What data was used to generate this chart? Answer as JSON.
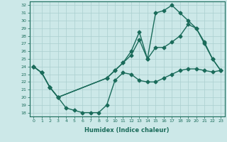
{
  "xlabel": "Humidex (Indice chaleur)",
  "xlim": [
    -0.5,
    23.5
  ],
  "ylim": [
    17.5,
    32.5
  ],
  "xticks": [
    0,
    1,
    2,
    3,
    4,
    5,
    6,
    7,
    8,
    9,
    10,
    11,
    12,
    13,
    14,
    15,
    16,
    17,
    18,
    19,
    20,
    21,
    22,
    23
  ],
  "yticks": [
    18,
    19,
    20,
    21,
    22,
    23,
    24,
    25,
    26,
    27,
    28,
    29,
    30,
    31,
    32
  ],
  "line_color": "#1a6b5a",
  "bg_color": "#cce8e8",
  "grid_color": "#aacfcf",
  "line1_x": [
    0,
    1,
    2,
    3,
    4,
    5,
    6,
    7,
    8,
    9,
    10,
    11,
    12,
    13,
    14,
    15,
    16,
    17,
    18,
    19,
    20,
    21,
    22,
    23
  ],
  "line1_y": [
    24.0,
    23.2,
    21.3,
    20.0,
    18.6,
    18.3,
    18.0,
    18.0,
    18.0,
    19.0,
    22.2,
    23.2,
    23.0,
    22.2,
    22.0,
    22.0,
    22.5,
    23.0,
    23.5,
    23.7,
    23.7,
    23.5,
    23.3,
    23.5
  ],
  "line2_x": [
    0,
    1,
    2,
    3,
    9,
    10,
    11,
    12,
    13,
    14,
    15,
    16,
    17,
    18,
    19,
    20,
    21,
    22,
    23
  ],
  "line2_y": [
    24.0,
    23.2,
    21.3,
    20.0,
    22.5,
    23.5,
    24.5,
    25.5,
    27.5,
    25.0,
    26.5,
    26.5,
    27.2,
    28.0,
    29.5,
    29.0,
    27.2,
    25.0,
    23.5
  ],
  "line3_x": [
    0,
    1,
    2,
    3,
    9,
    10,
    11,
    12,
    13,
    14,
    15,
    16,
    17,
    18,
    19,
    20,
    21,
    22,
    23
  ],
  "line3_y": [
    24.0,
    23.2,
    21.3,
    20.0,
    22.5,
    23.5,
    24.5,
    26.0,
    28.5,
    25.0,
    31.0,
    31.3,
    32.0,
    31.0,
    30.0,
    29.0,
    27.0,
    25.0,
    23.5
  ],
  "marker": "D",
  "marker_size": 2.5,
  "line_width": 1.0
}
